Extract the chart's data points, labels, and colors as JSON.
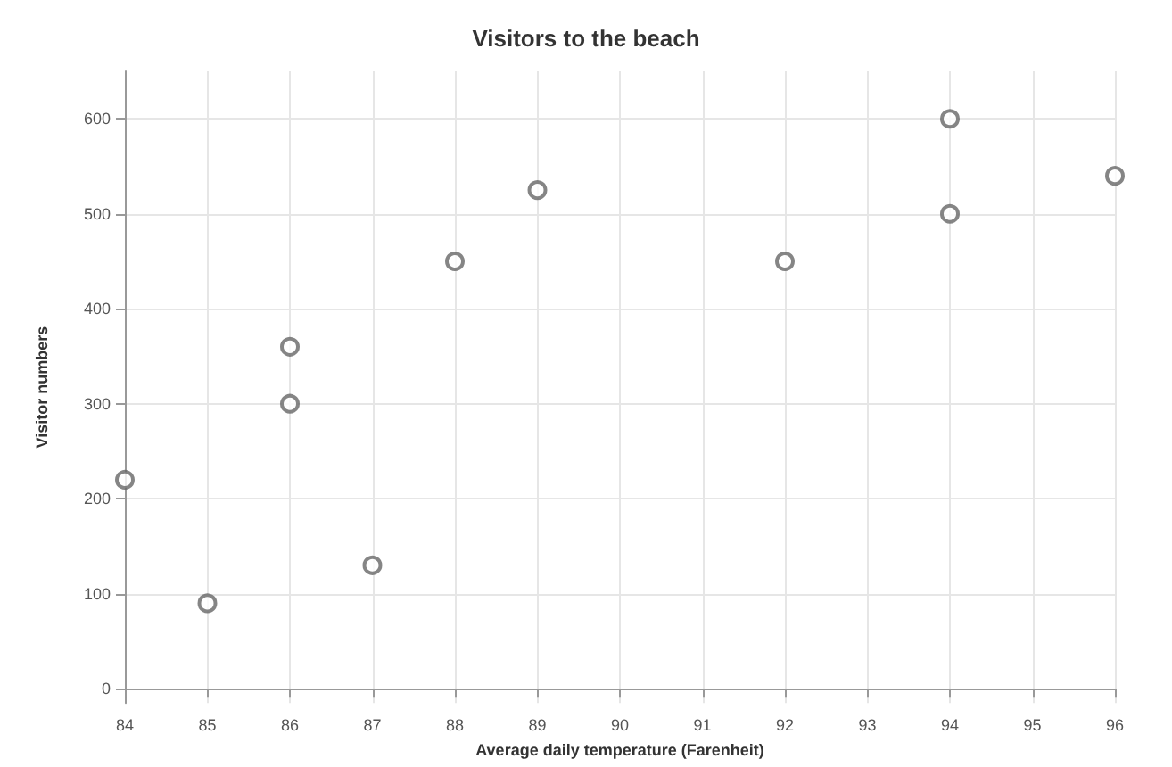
{
  "chart_data": {
    "type": "scatter",
    "title": "Visitors to the beach",
    "xlabel": "Average daily temperature (Farenheit)",
    "ylabel": "Visitor numbers",
    "x": [
      84,
      85,
      86,
      86,
      87,
      88,
      89,
      92,
      94,
      94,
      96
    ],
    "values": [
      220,
      90,
      360,
      300,
      130,
      450,
      525,
      450,
      600,
      500,
      540
    ],
    "color": "#666666",
    "marker": "circle",
    "xlim": [
      84,
      96
    ],
    "xticks": [
      84,
      85,
      86,
      87,
      88,
      89,
      90,
      91,
      92,
      93,
      94,
      95,
      96
    ],
    "ylim": [
      -15,
      650
    ],
    "yticks": [
      0,
      100,
      200,
      300,
      400,
      500,
      600
    ],
    "grid": true
  }
}
